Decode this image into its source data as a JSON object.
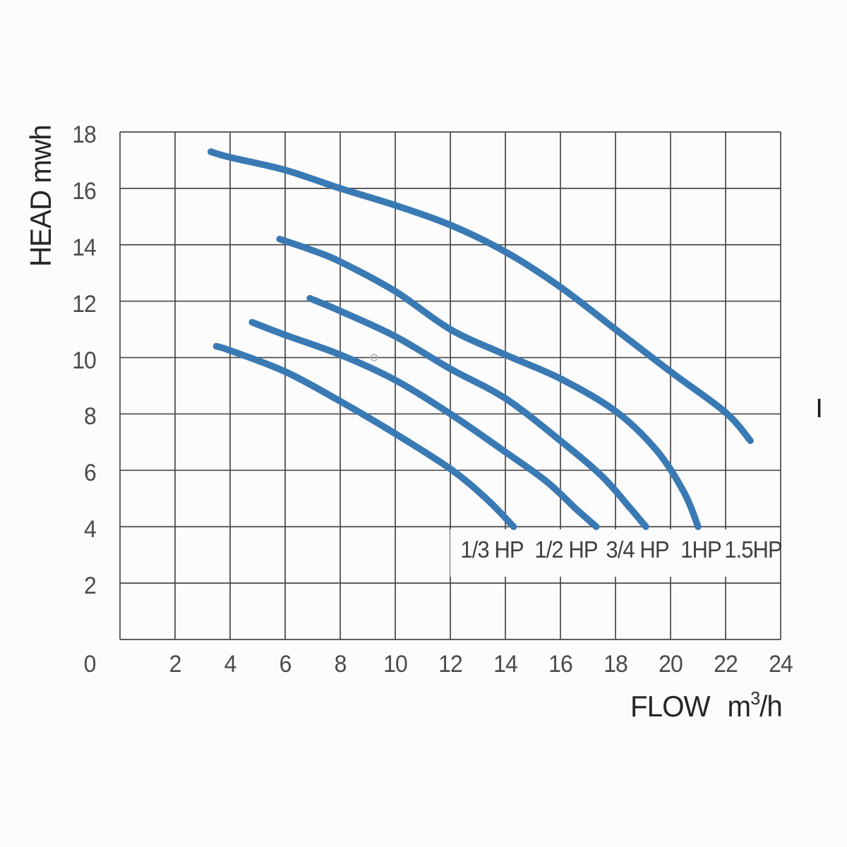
{
  "page": {
    "background": "#fcfcfc"
  },
  "chart_data": {
    "type": "line",
    "title": "",
    "ylabel": "HEAD mwh",
    "xlabel": "FLOW",
    "xunit": {
      "base": "m",
      "exponent": "3",
      "per": "/h"
    },
    "origin_label": "0",
    "xlim": [
      0,
      24
    ],
    "ylim": [
      0,
      18
    ],
    "x_ticks": [
      2,
      4,
      6,
      8,
      10,
      12,
      14,
      16,
      18,
      20,
      22,
      24
    ],
    "y_ticks": [
      18,
      16,
      14,
      12,
      10,
      8,
      6,
      4,
      2
    ],
    "grid": true,
    "grid_step_x": 2,
    "grid_step_y": 2,
    "grid_color": "#474747",
    "line_color": "#3a7ab4",
    "series": [
      {
        "name": "1/3 HP",
        "label_at": {
          "flow": 13.5,
          "head": 3.18
        },
        "points": [
          [
            3.5,
            10.4
          ],
          [
            4,
            10.25
          ],
          [
            6,
            9.5
          ],
          [
            8,
            8.45
          ],
          [
            10,
            7.3
          ],
          [
            12,
            6.05
          ],
          [
            13.3,
            5.0
          ],
          [
            14.3,
            4.0
          ]
        ]
      },
      {
        "name": "1/2 HP",
        "label_at": {
          "flow": 16.2,
          "head": 3.18
        },
        "points": [
          [
            4.8,
            11.25
          ],
          [
            6,
            10.8
          ],
          [
            8,
            10.1
          ],
          [
            10,
            9.2
          ],
          [
            12,
            8.0
          ],
          [
            14,
            6.65
          ],
          [
            15.5,
            5.6
          ],
          [
            16.6,
            4.6
          ],
          [
            17.3,
            4.0
          ]
        ]
      },
      {
        "name": "3/4 HP",
        "label_at": {
          "flow": 18.8,
          "head": 3.18
        },
        "points": [
          [
            6.9,
            12.1
          ],
          [
            8,
            11.65
          ],
          [
            10,
            10.75
          ],
          [
            12,
            9.6
          ],
          [
            14,
            8.55
          ],
          [
            16,
            7.05
          ],
          [
            17.5,
            5.8
          ],
          [
            18.5,
            4.7
          ],
          [
            19.1,
            4.0
          ]
        ]
      },
      {
        "name": "1HP",
        "label_at": {
          "flow": 21.1,
          "head": 3.18
        },
        "points": [
          [
            5.8,
            14.2
          ],
          [
            7,
            13.8
          ],
          [
            8,
            13.4
          ],
          [
            10,
            12.35
          ],
          [
            12,
            11.0
          ],
          [
            14,
            10.1
          ],
          [
            16,
            9.25
          ],
          [
            18,
            8.1
          ],
          [
            19.5,
            6.7
          ],
          [
            20.5,
            5.2
          ],
          [
            21,
            4.0
          ]
        ]
      },
      {
        "name": "1.5HP",
        "label_at": {
          "flow": 23.0,
          "head": 3.18
        },
        "points": [
          [
            3.3,
            17.3
          ],
          [
            4,
            17.1
          ],
          [
            6,
            16.65
          ],
          [
            8,
            16.0
          ],
          [
            10,
            15.4
          ],
          [
            12,
            14.7
          ],
          [
            14,
            13.75
          ],
          [
            16,
            12.5
          ],
          [
            18,
            11.0
          ],
          [
            20,
            9.5
          ],
          [
            22,
            8.05
          ],
          [
            22.9,
            7.05
          ]
        ]
      }
    ],
    "annotations": [
      {
        "type": "ring",
        "flow": 9.23,
        "head": 10.0,
        "color": "#b5b5b5"
      },
      {
        "type": "tick-mark",
        "flow": 25.4,
        "head": 8.21,
        "color": "#1a1a1a"
      }
    ]
  }
}
